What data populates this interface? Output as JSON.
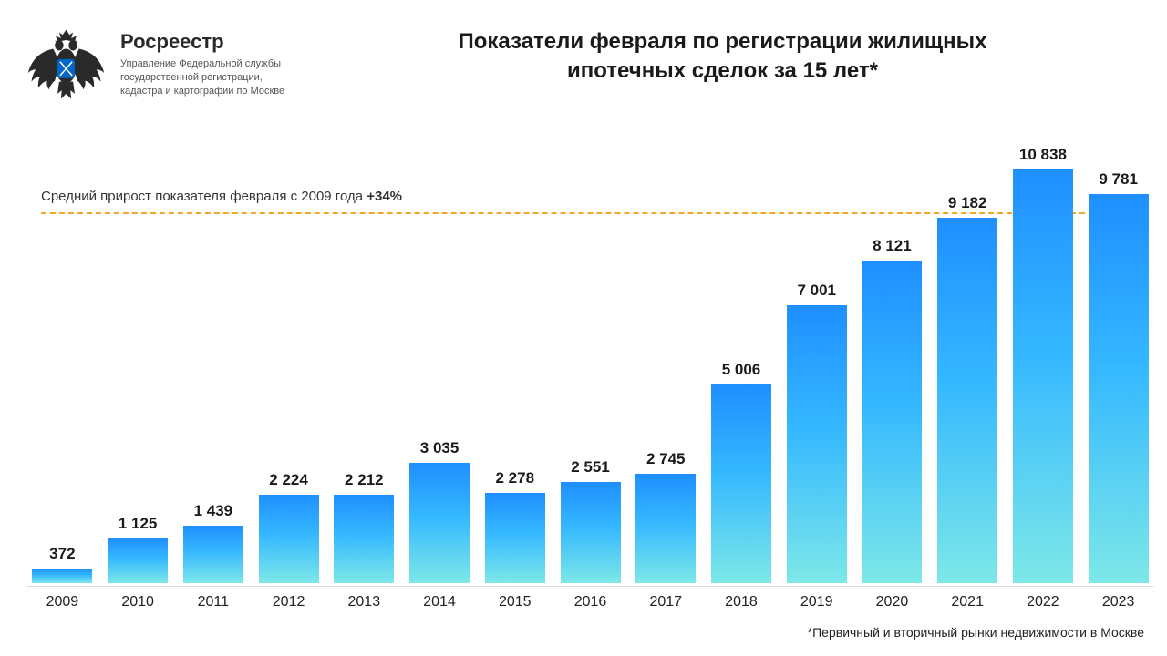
{
  "org": {
    "name": "Росреестр",
    "desc_line1": "Управление Федеральной службы",
    "desc_line2": "государственной регистрации,",
    "desc_line3": "кадастра и картографии по Москве"
  },
  "title_line1": "Показатели февраля по регистрации жилищных",
  "title_line2": "ипотечных сделок за 15 лет*",
  "annotation_text": "Средний прирост показателя февраля с 2009 года ",
  "annotation_pct": "+34%",
  "footnote": "*Первичный и вторичный рынки недвижимости в Москве",
  "chart": {
    "type": "bar",
    "years": [
      "2009",
      "2010",
      "2011",
      "2012",
      "2013",
      "2014",
      "2015",
      "2016",
      "2017",
      "2018",
      "2019",
      "2020",
      "2021",
      "2022",
      "2023"
    ],
    "values": [
      372,
      1125,
      1439,
      2224,
      2212,
      3035,
      2278,
      2551,
      2745,
      5006,
      7001,
      8121,
      9182,
      10838,
      9781
    ],
    "value_labels": [
      "372",
      "1 125",
      "1 439",
      "2 224",
      "2 212",
      "3 035",
      "2 278",
      "2 551",
      "2 745",
      "5 006",
      "7 001",
      "8 121",
      "9 182",
      "10 838",
      "9 781"
    ],
    "y_max": 11000,
    "reference_value": 9781,
    "bar_gradient_top": "#1f8fff",
    "bar_gradient_mid": "#35b8ff",
    "bar_gradient_bottom": "#7de8e8",
    "reference_line_color": "#f5a623",
    "background_color": "#ffffff",
    "value_fontsize": 17,
    "value_fontweight": 700,
    "xlabel_fontsize": 16,
    "title_fontsize": 24,
    "title_fontweight": 700,
    "bar_width_ratio": 0.86,
    "logo_shield_color": "#0066cc"
  }
}
